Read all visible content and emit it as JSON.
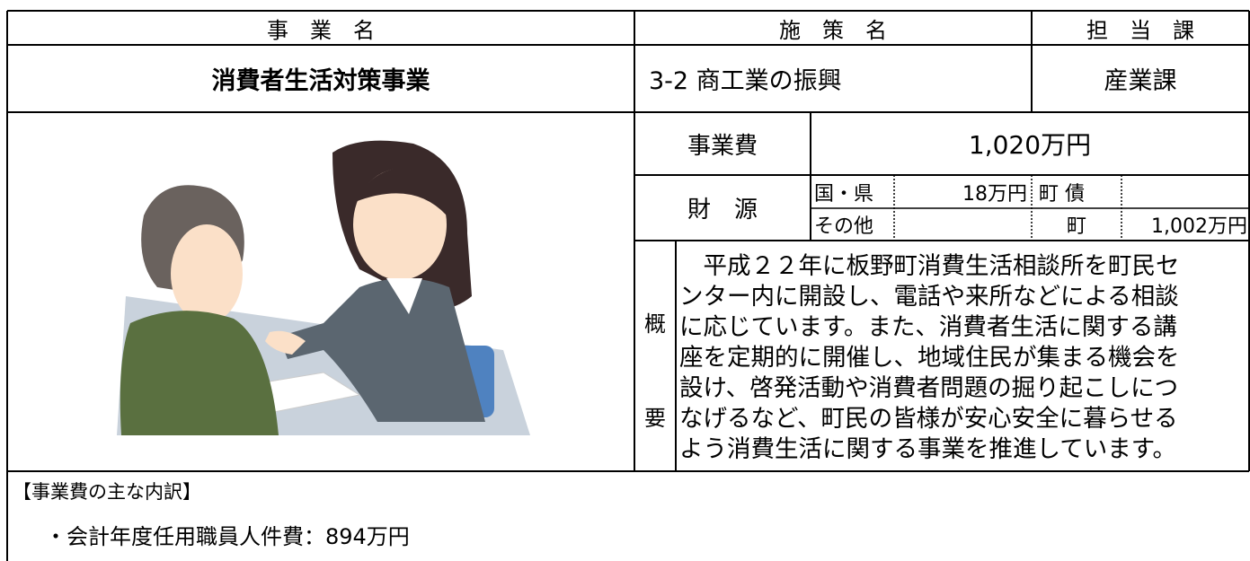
{
  "header": {
    "business_name_label": "事　業　名",
    "policy_label": "施　策　名",
    "department_label": "担　当　課"
  },
  "main": {
    "business_name": "消費者生活対策事業",
    "policy": "3-2 商工業の振興",
    "department": "産業課"
  },
  "cost": {
    "label": "事業費",
    "value": "1,020万円"
  },
  "funding": {
    "label": "財　源",
    "national_pref_label": "国・県",
    "national_pref_amount": "18万円",
    "town_bond_label": "町 債",
    "other_label": "その他",
    "town_label": "町",
    "town_amount": "1,002万円"
  },
  "summary": {
    "label_top": "概",
    "label_bottom": "要",
    "lines": [
      "　平成２２年に板野町消費生活相談所を町民セ",
      "ンター内に開設し、電話や来所などによる相談",
      "に応じています。また、消費者生活に関する講",
      "座を定期的に開催し、地域住民が集まる機会を",
      "設け、啓発活動や消費者問題の掘り起こしにつ",
      "なげるなど、町民の皆様が安心安全に暮らせる",
      "よう消費生活に関する事業を推進しています。"
    ]
  },
  "breakdown": {
    "title": "【事業費の主な内訳】",
    "items": [
      "・会計年度任用職員人件費：894万円"
    ]
  }
}
